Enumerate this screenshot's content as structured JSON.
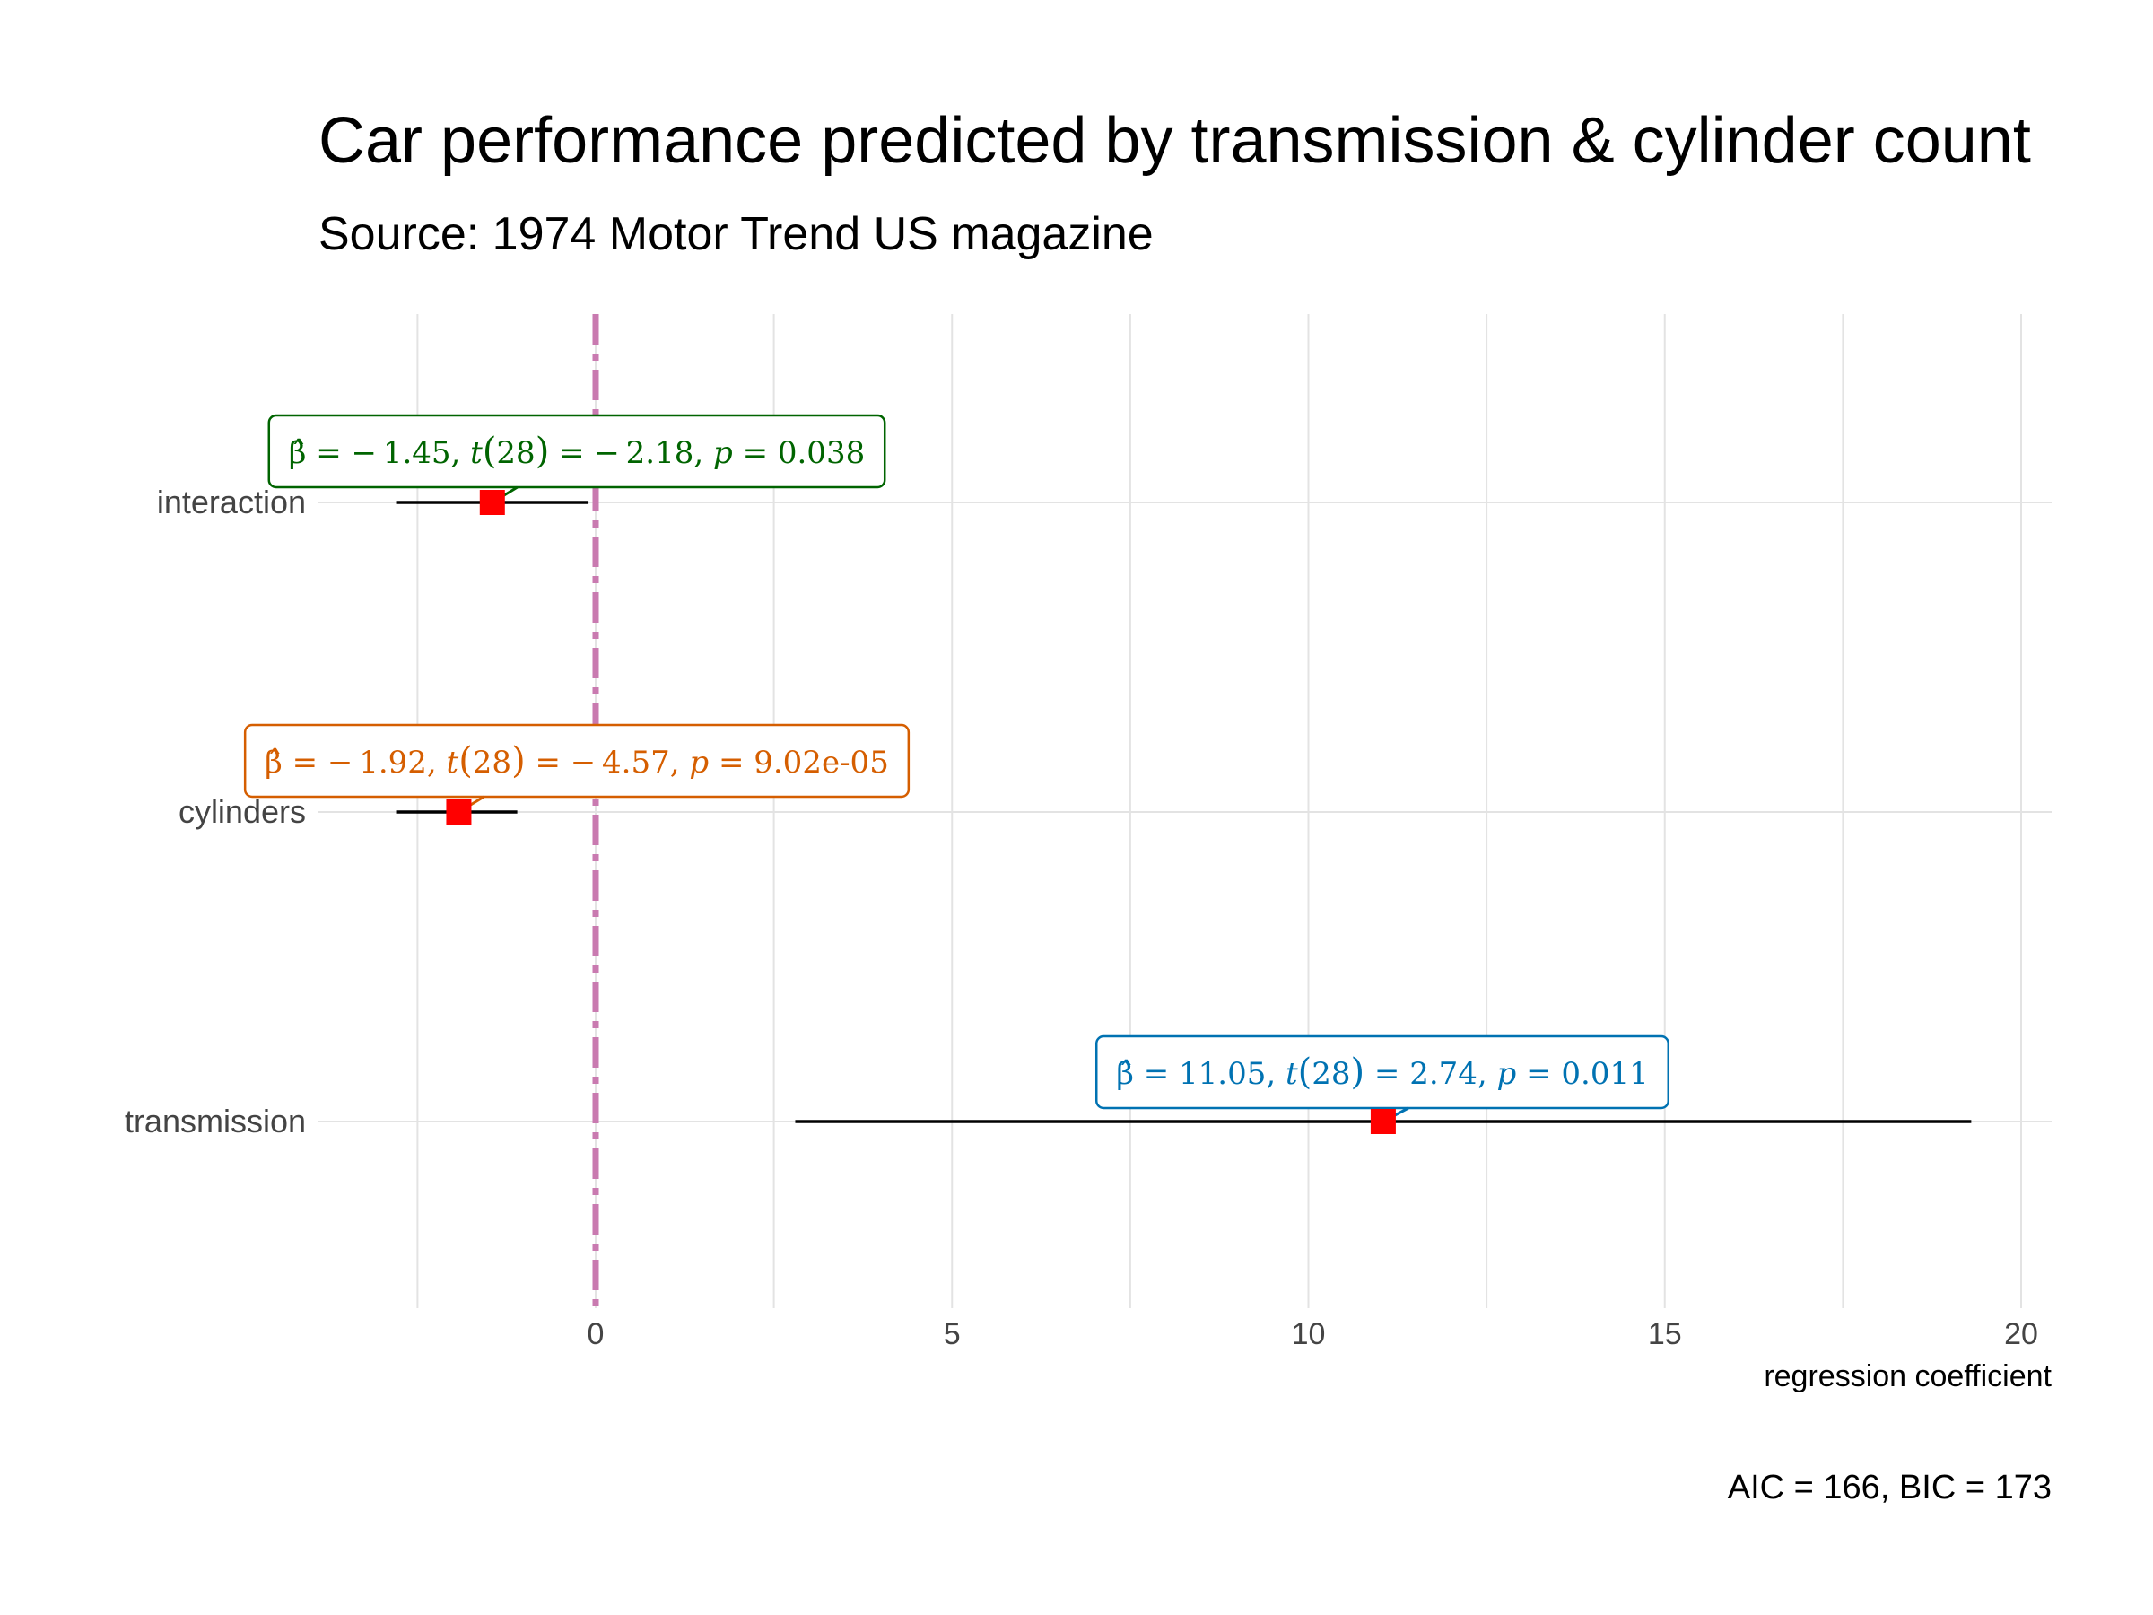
{
  "chart_data": {
    "type": "scatter",
    "title": "Car performance predicted by transmission & cylinder count",
    "subtitle": "Source: 1974 Motor Trend US magazine",
    "xlabel": "regression coefficient",
    "caption": "AIC = 166, BIC = 173",
    "xlim": [
      -4.3,
      20.4
    ],
    "xticks": [
      0,
      5,
      10,
      15,
      20
    ],
    "xtick_labels": [
      "0",
      "5",
      "10",
      "15",
      "20"
    ],
    "reference_line": 0,
    "reference_color": "#C97AB0",
    "point_color": "#FF0000",
    "grid": true,
    "terms": [
      {
        "label": "interaction",
        "estimate": -1.45,
        "conf_low": -2.8,
        "conf_high": -0.1,
        "color": "#006400",
        "beta": "− 1.45",
        "t": "− 2.18",
        "p": "0.038",
        "df": "28"
      },
      {
        "label": "cylinders",
        "estimate": -1.92,
        "conf_low": -2.8,
        "conf_high": -1.1,
        "color": "#D55E00",
        "beta": "− 1.92",
        "t": "− 4.57",
        "p": "9.02e-05",
        "df": "28"
      },
      {
        "label": "transmission",
        "estimate": 11.05,
        "conf_low": 2.8,
        "conf_high": 19.3,
        "color": "#0072B2",
        "beta": "11.05",
        "t": "2.74",
        "p": "0.011",
        "df": "28"
      }
    ]
  }
}
